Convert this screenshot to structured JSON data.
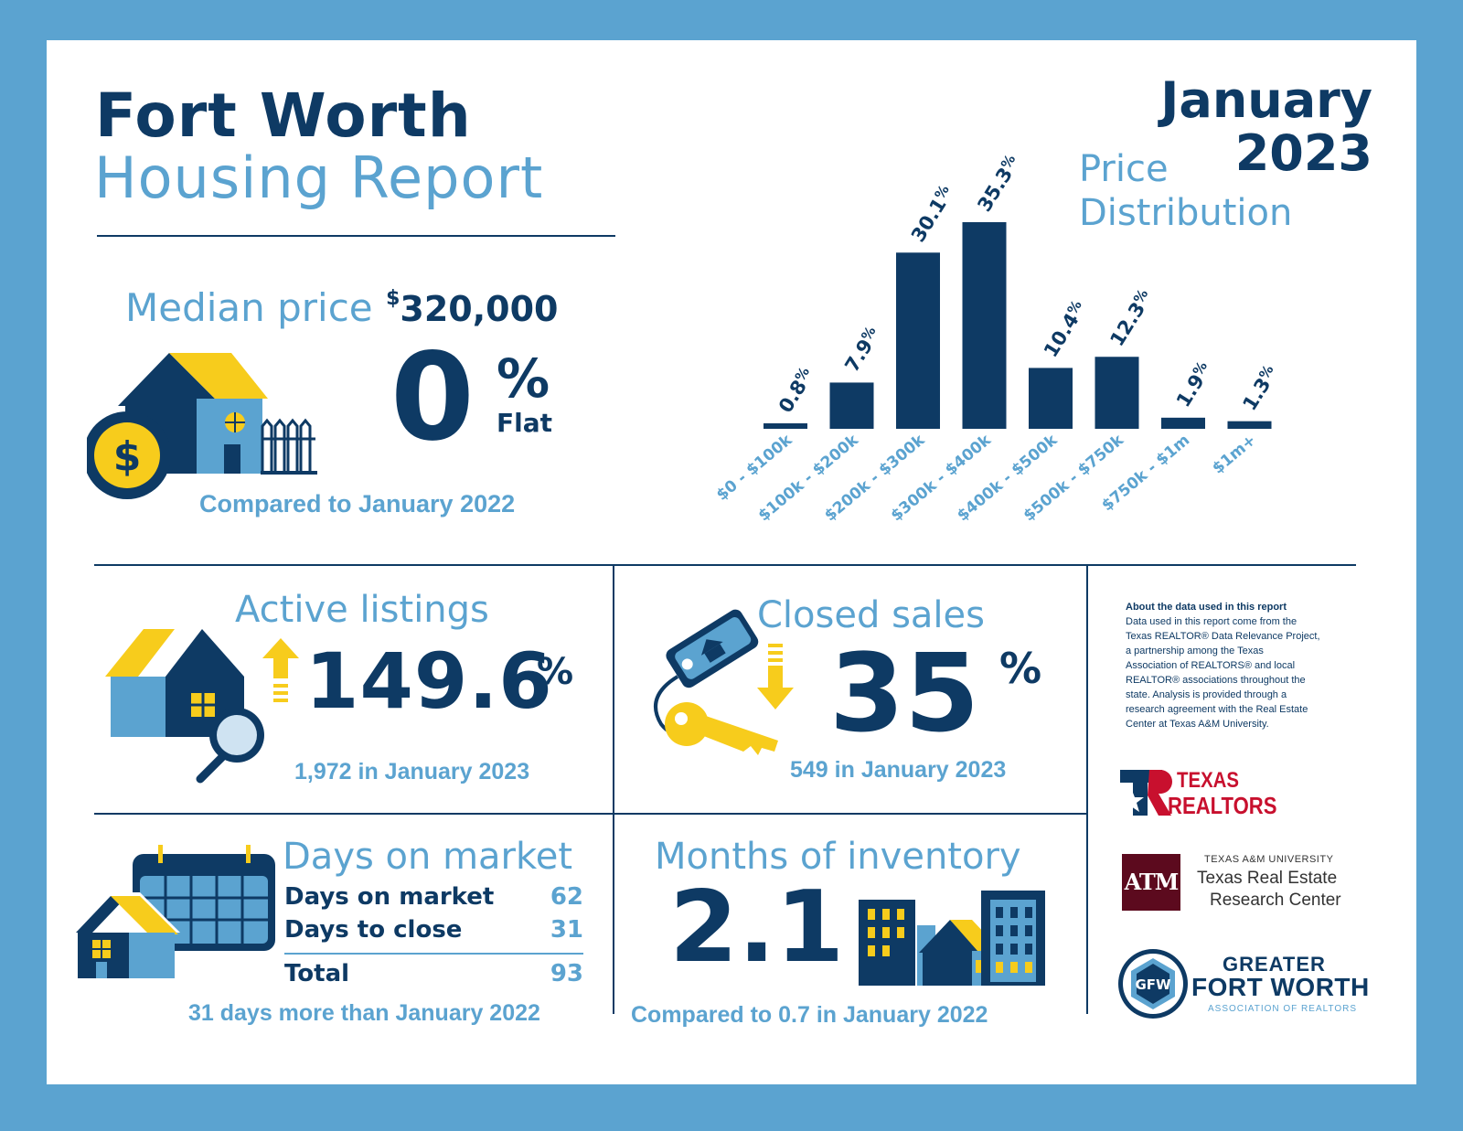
{
  "title": {
    "city": "Fort Worth",
    "report": "Housing Report",
    "month": "January",
    "year": "2023"
  },
  "median_price": {
    "label": "Median price",
    "currency": "$",
    "value": "320,000",
    "change_value": "0",
    "change_unit": "%",
    "change_word": "Flat",
    "comparison": "Compared to January 2022"
  },
  "price_distribution": {
    "title_line1": "Price",
    "title_line2": "Distribution"
  },
  "chart_data": {
    "type": "bar",
    "title": "Price Distribution",
    "categories": [
      "$0 - $100k",
      "$100k - $200k",
      "$200k - $300k",
      "$300k - $400k",
      "$400k - $500k",
      "$500k - $750k",
      "$750k - $1m",
      "$1m+"
    ],
    "values": [
      0.8,
      7.9,
      30.1,
      35.3,
      10.4,
      12.3,
      1.9,
      1.3
    ],
    "labels": [
      "0.8",
      "7.9",
      "30.1",
      "35.3",
      "10.4",
      "12.3",
      "1.9",
      "1.3"
    ],
    "unit": "%",
    "xlabel": "",
    "ylabel": "",
    "ylim": [
      0,
      35.3
    ],
    "colors": {
      "bar": "#0e3a64",
      "category_label": "#5ba3d0"
    }
  },
  "active_listings": {
    "title": "Active listings",
    "value": "149.6",
    "unit": "%",
    "detail": "1,972 in January 2023"
  },
  "closed_sales": {
    "title": "Closed sales",
    "value": "35",
    "unit": "%",
    "detail": "549 in January 2023"
  },
  "days_on_market": {
    "title": "Days on market",
    "rows": [
      {
        "label": "Days on market",
        "value": "62"
      },
      {
        "label": "Days to close",
        "value": "31"
      }
    ],
    "total_label": "Total",
    "total_value": "93",
    "detail": "31 days more than January 2022"
  },
  "months_inventory": {
    "title": "Months of inventory",
    "value": "2.1",
    "detail": "Compared to 0.7 in January 2022"
  },
  "about": {
    "heading": "About the data used in this report",
    "lines": [
      "Data used in this report come from the",
      "Texas REALTOR® Data Relevance Project,",
      "a partnership among the Texas",
      "Association of REALTORS® and local",
      "REALTOR® associations throughout the",
      "state. Analysis is provided through a",
      "research agreement with the Real Estate",
      "Center at Texas A&M University."
    ]
  },
  "logos": {
    "texas_realtors": {
      "line1": "TEXAS",
      "line2": "REALTORS"
    },
    "tamu": {
      "monogram": "ATM",
      "university": "TEXAS A&M UNIVERSITY",
      "line1": "Texas Real Estate",
      "line2": "Research Center"
    },
    "gfw": {
      "monogram": "GFW",
      "line1": "GREATER",
      "line2": "FORT WORTH",
      "line3": "ASSOCIATION OF REALTORS"
    }
  },
  "colors": {
    "navy": "#0e3a64",
    "light_blue": "#5ba3d0",
    "yellow": "#f7cc1c",
    "white": "#ffffff",
    "maroon": "#5c0a1e",
    "red": "#c8102e"
  }
}
